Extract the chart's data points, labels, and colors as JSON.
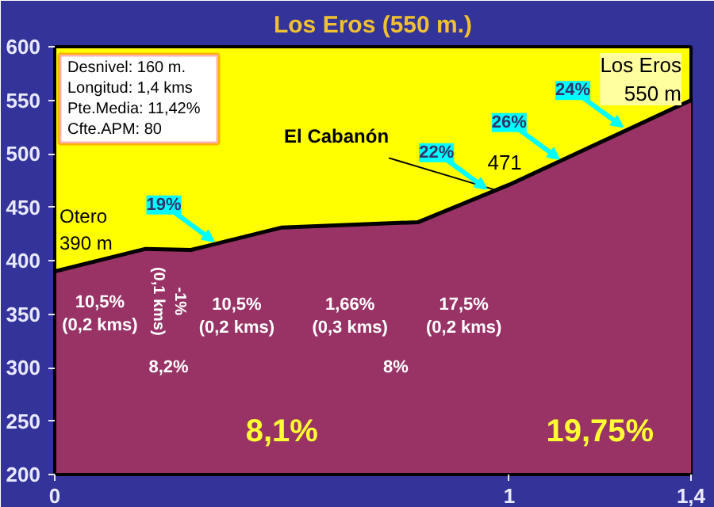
{
  "chart_data": {
    "type": "area",
    "title": "Los Eros (550 m.)",
    "x": [
      0,
      0.2,
      0.3,
      0.5,
      0.8,
      1.0,
      1.4
    ],
    "series": [
      {
        "color": "#993366",
        "values": [
          390,
          411,
          410,
          431,
          436,
          471,
          550
        ]
      }
    ],
    "xlim": [
      0,
      1.4
    ],
    "ylim": [
      200,
      600
    ],
    "xticks": [
      0,
      1,
      {
        "value": 1.4,
        "label": "1,4"
      }
    ],
    "yticks": [
      200,
      250,
      300,
      350,
      400,
      450,
      500,
      550,
      600
    ],
    "grid": false,
    "annotations": [
      "Desnivel: 160 m.",
      "Longitud: 1,4 kms",
      "Pte.Media: 11,42%",
      "Cfte.APM: 80",
      {
        "text": "Otero\n390 m",
        "x": 0,
        "y": 390
      },
      {
        "text": "Los Eros\n550 m",
        "x": 1.4,
        "y": 550
      },
      {
        "text": "El Cabanón",
        "x": 0.97,
        "y": 466
      },
      {
        "text": "471",
        "x": 1.0,
        "y": 471
      },
      {
        "text": "19%",
        "x": 0.35,
        "y": 418
      },
      {
        "text": "22%",
        "x": 0.95,
        "y": 467
      },
      {
        "text": "26%",
        "x": 1.11,
        "y": 495
      },
      {
        "text": "24%",
        "x": 1.25,
        "y": 525
      },
      "10,5%\n(0,2 kms)",
      "-1%\n(0,1 kms)",
      "10,5%\n(0,2 kms)",
      "1,66%\n(0,3 kms)",
      "17,5%\n(0,2 kms)",
      "8,2%",
      "8%",
      "8,1%",
      "19,75%"
    ]
  }
}
